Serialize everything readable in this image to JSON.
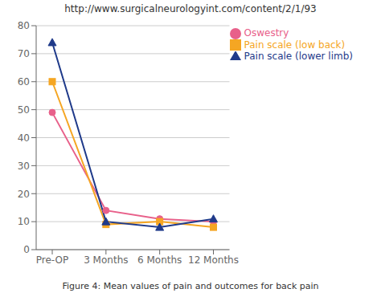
{
  "chart_data": {
    "type": "line",
    "title": "http://www.surgicalneurologyint.com/content/2/1/93",
    "annotations": [
      "Figure 4: Mean values of pain and outcomes for back pain"
    ],
    "categories": [
      "Pre-OP",
      "3 Months",
      "6 Months",
      "12 Months"
    ],
    "series": [
      {
        "name": "Oswestry",
        "color": "#e8608a",
        "values": [
          49,
          14,
          11,
          10
        ],
        "marker": "circle",
        "line_style": "solid"
      },
      {
        "name": "Pain scale (low back)",
        "color": "#f5a623",
        "values": [
          60,
          9,
          10,
          8
        ],
        "marker": "square",
        "line_style": "solid"
      },
      {
        "name": "Pain scale (lower limb)",
        "color": "#1f3a8a",
        "values": [
          74,
          10,
          8,
          11
        ],
        "marker": "triangle",
        "line_style": "solid"
      }
    ],
    "ylim": [
      0,
      80
    ],
    "yticks": [
      0,
      10,
      20,
      30,
      40,
      50,
      60,
      70,
      80
    ],
    "grid": "y",
    "legend": "upper right"
  }
}
